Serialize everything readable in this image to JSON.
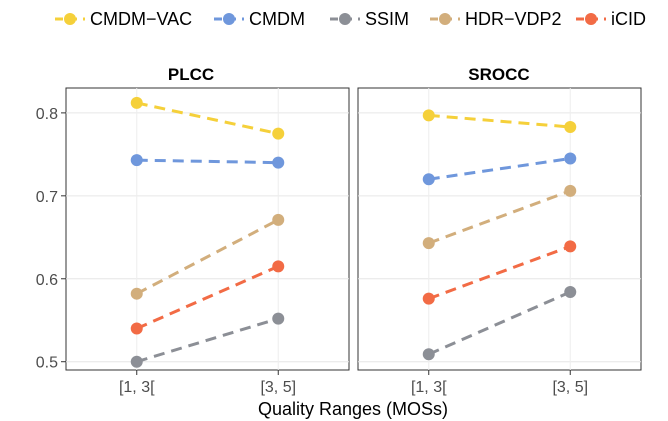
{
  "chart_data": {
    "type": "line",
    "xlabel": "Quality Ranges (MOSs)",
    "ylabel": "",
    "categories": [
      "[1, 3[",
      "[3, 5]"
    ],
    "ylim": [
      0.49,
      0.83
    ],
    "yticks": [
      "0.5",
      "0.6",
      "0.7",
      "0.8"
    ],
    "grid": true,
    "legend_position": "top",
    "series_styles": [
      {
        "name": "CMDM−VAC",
        "color": "#F5D03A"
      },
      {
        "name": "CMDM",
        "color": "#6F97DC"
      },
      {
        "name": "SSIM",
        "color": "#8C8F96"
      },
      {
        "name": "HDR−VDP2",
        "color": "#D2AE7C"
      },
      {
        "name": "iCID",
        "color": "#F26B45"
      }
    ],
    "panels": [
      {
        "title": "PLCC",
        "series": [
          {
            "name": "CMDM−VAC",
            "values": [
              0.812,
              0.775
            ]
          },
          {
            "name": "CMDM",
            "values": [
              0.743,
              0.74
            ]
          },
          {
            "name": "SSIM",
            "values": [
              0.5,
              0.552
            ]
          },
          {
            "name": "HDR−VDP2",
            "values": [
              0.582,
              0.671
            ]
          },
          {
            "name": "iCID",
            "values": [
              0.54,
              0.615
            ]
          }
        ]
      },
      {
        "title": "SROCC",
        "series": [
          {
            "name": "CMDM−VAC",
            "values": [
              0.797,
              0.783
            ]
          },
          {
            "name": "CMDM",
            "values": [
              0.72,
              0.745
            ]
          },
          {
            "name": "SSIM",
            "values": [
              0.509,
              0.584
            ]
          },
          {
            "name": "HDR−VDP2",
            "values": [
              0.643,
              0.706
            ]
          },
          {
            "name": "iCID",
            "values": [
              0.576,
              0.639
            ]
          }
        ]
      }
    ]
  }
}
